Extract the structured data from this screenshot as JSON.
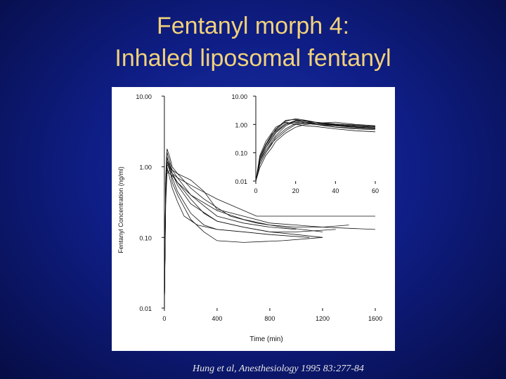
{
  "slide": {
    "title_line1": "Fentanyl morph 4:",
    "title_line2": "Inhaled liposomal fentanyl",
    "citation": "Hung et al, Anesthesiology 1995 83:277-84"
  },
  "colors": {
    "title": "#f2d27a",
    "background": "#0f1e86",
    "figure_bg": "#ffffff",
    "ink": "#111111"
  },
  "chart_data": [
    {
      "type": "line",
      "xlabel": "Time (min)",
      "ylabel": "Fentanyl Concentration (ng/ml)",
      "x_ticks": [
        0,
        400,
        800,
        1200,
        1600
      ],
      "x_tick_labels": [
        "0",
        "400",
        "800",
        "1200",
        "1600"
      ],
      "y_ticks": [
        0.01,
        0.1,
        1,
        10
      ],
      "y_tick_labels": [
        "0.01",
        "0.10",
        "1.00",
        "10.00"
      ],
      "xlim": [
        -90,
        1600
      ],
      "ylim": [
        0.01,
        10
      ],
      "y_scale": "log",
      "series": [
        {
          "x": [
            0,
            10,
            20,
            40,
            60,
            100,
            200,
            300,
            400,
            600,
            800,
            1000,
            1200
          ],
          "y": [
            0.01,
            0.5,
            1.3,
            1.1,
            0.8,
            0.6,
            0.35,
            0.22,
            0.17,
            0.14,
            0.12,
            0.11,
            0.1
          ]
        },
        {
          "x": [
            0,
            10,
            20,
            40,
            60,
            100,
            200,
            300,
            400,
            600,
            800,
            1000
          ],
          "y": [
            0.01,
            0.6,
            1.6,
            1.2,
            0.9,
            0.7,
            0.4,
            0.28,
            0.2,
            0.16,
            0.14,
            0.13
          ]
        },
        {
          "x": [
            0,
            10,
            20,
            40,
            60,
            100,
            200,
            300,
            400,
            600,
            800,
            1100
          ],
          "y": [
            0.01,
            0.4,
            1.1,
            0.9,
            0.7,
            0.45,
            0.22,
            0.15,
            0.13,
            0.12,
            0.11,
            0.1
          ]
        },
        {
          "x": [
            0,
            10,
            20,
            40,
            60,
            100,
            200,
            300,
            500,
            700,
            900,
            1200
          ],
          "y": [
            0.01,
            0.7,
            1.8,
            1.4,
            1.0,
            0.8,
            0.5,
            0.35,
            0.2,
            0.16,
            0.14,
            0.12
          ]
        },
        {
          "x": [
            0,
            10,
            20,
            40,
            60,
            100,
            150,
            250,
            400,
            600,
            800
          ],
          "y": [
            0.01,
            0.5,
            1.0,
            0.7,
            0.5,
            0.32,
            0.2,
            0.15,
            0.13,
            0.12,
            0.11
          ]
        },
        {
          "x": [
            0,
            10,
            20,
            40,
            60,
            100,
            200,
            400,
            600,
            800,
            1000,
            1300
          ],
          "y": [
            0.01,
            0.6,
            1.4,
            1.0,
            0.8,
            0.55,
            0.3,
            0.17,
            0.14,
            0.12,
            0.12,
            0.13
          ]
        },
        {
          "x": [
            0,
            10,
            20,
            40,
            60,
            100,
            200,
            400,
            600,
            800,
            1000,
            1200,
            1400
          ],
          "y": [
            0.01,
            0.4,
            0.9,
            0.8,
            0.75,
            0.6,
            0.4,
            0.24,
            0.18,
            0.15,
            0.14,
            0.14,
            0.15
          ]
        },
        {
          "x": [
            0,
            10,
            20,
            40,
            60,
            100,
            200,
            400,
            700,
            1000,
            1300,
            1600
          ],
          "y": [
            0.01,
            0.3,
            0.8,
            0.9,
            0.8,
            0.7,
            0.55,
            0.35,
            0.2,
            0.2,
            0.2,
            0.2
          ]
        },
        {
          "x": [
            0,
            10,
            20,
            40,
            60,
            100,
            200,
            300,
            400,
            600,
            800,
            1000,
            1200,
            1600
          ],
          "y": [
            0.01,
            0.5,
            1.2,
            1.0,
            0.9,
            0.8,
            0.65,
            0.45,
            0.25,
            0.2,
            0.16,
            0.15,
            0.14,
            0.13
          ]
        },
        {
          "x": [
            0,
            10,
            20,
            40,
            60,
            100,
            200,
            300,
            400,
            600,
            900,
            1200
          ],
          "y": [
            0.01,
            0.5,
            1.2,
            0.95,
            0.6,
            0.4,
            0.18,
            0.12,
            0.09,
            0.085,
            0.09,
            0.1
          ]
        }
      ]
    },
    {
      "type": "line",
      "inset": true,
      "x_ticks": [
        0,
        20,
        40,
        60
      ],
      "x_tick_labels": [
        "0",
        "20",
        "40",
        "60"
      ],
      "y_ticks": [
        0.01,
        0.1,
        1,
        10
      ],
      "y_tick_labels": [
        "0.01",
        "0.10",
        "1.00",
        "10.00"
      ],
      "xlim": [
        0,
        60
      ],
      "ylim": [
        0.01,
        10
      ],
      "y_scale": "log",
      "series": [
        {
          "x": [
            0,
            2,
            5,
            8,
            10,
            15,
            20,
            25,
            30,
            40,
            50,
            60
          ],
          "y": [
            0.01,
            0.05,
            0.15,
            0.3,
            0.5,
            1.0,
            1.3,
            1.2,
            1.0,
            0.8,
            0.7,
            0.65
          ]
        },
        {
          "x": [
            0,
            2,
            5,
            8,
            10,
            15,
            20,
            25,
            30,
            40,
            50,
            60
          ],
          "y": [
            0.01,
            0.06,
            0.2,
            0.4,
            0.7,
            1.4,
            1.5,
            1.3,
            1.1,
            0.9,
            0.8,
            0.75
          ]
        },
        {
          "x": [
            0,
            2,
            5,
            8,
            10,
            15,
            20,
            25,
            30,
            40,
            50,
            60
          ],
          "y": [
            0.01,
            0.04,
            0.1,
            0.2,
            0.35,
            0.7,
            1.1,
            1.2,
            1.1,
            0.95,
            0.85,
            0.8
          ]
        },
        {
          "x": [
            0,
            2,
            5,
            8,
            10,
            15,
            20,
            25,
            30,
            40,
            50,
            60
          ],
          "y": [
            0.01,
            0.08,
            0.25,
            0.5,
            0.8,
            1.2,
            1.0,
            0.9,
            0.85,
            0.7,
            0.6,
            0.55
          ]
        },
        {
          "x": [
            0,
            2,
            5,
            8,
            10,
            15,
            20,
            25,
            30,
            40,
            50,
            60
          ],
          "y": [
            0.01,
            0.05,
            0.12,
            0.25,
            0.4,
            0.9,
            1.3,
            1.4,
            1.2,
            1.0,
            0.9,
            0.8
          ]
        },
        {
          "x": [
            0,
            2,
            5,
            8,
            10,
            15,
            20,
            25,
            30,
            40,
            50,
            60
          ],
          "y": [
            0.01,
            0.03,
            0.08,
            0.15,
            0.25,
            0.5,
            0.8,
            1.0,
            1.1,
            1.2,
            1.0,
            0.9
          ]
        },
        {
          "x": [
            0,
            2,
            5,
            8,
            10,
            15,
            20,
            25,
            30,
            40,
            50,
            60
          ],
          "y": [
            0.01,
            0.07,
            0.2,
            0.45,
            0.6,
            1.1,
            1.2,
            1.1,
            1.0,
            0.8,
            0.75,
            0.7
          ]
        },
        {
          "x": [
            0,
            2,
            5,
            8,
            10,
            15,
            20,
            25,
            30,
            40,
            50,
            60
          ],
          "y": [
            0.01,
            0.05,
            0.15,
            0.35,
            0.55,
            1.0,
            1.4,
            1.3,
            1.2,
            1.05,
            0.95,
            0.85
          ]
        },
        {
          "x": [
            0,
            2,
            5,
            8,
            10,
            15,
            20,
            25,
            30,
            40,
            50,
            60
          ],
          "y": [
            0.01,
            0.04,
            0.1,
            0.22,
            0.3,
            0.6,
            1.0,
            1.1,
            1.0,
            0.9,
            0.8,
            0.7
          ]
        },
        {
          "x": [
            0,
            2,
            5,
            8,
            10,
            15,
            20,
            25,
            30,
            40,
            50,
            60
          ],
          "y": [
            0.01,
            0.06,
            0.18,
            0.4,
            0.65,
            1.3,
            1.6,
            1.4,
            1.2,
            0.95,
            0.8,
            0.75
          ]
        }
      ]
    }
  ]
}
